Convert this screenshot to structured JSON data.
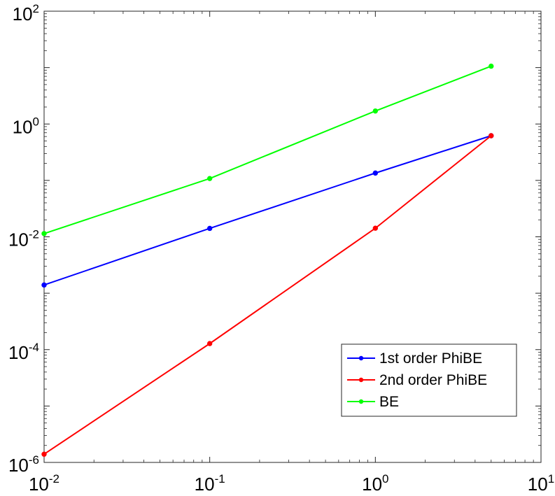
{
  "chart_data": {
    "type": "line",
    "x_scale": "log",
    "y_scale": "log",
    "xlim": [
      0.01,
      10
    ],
    "ylim": [
      1e-06,
      100
    ],
    "grid": false,
    "legend_placement": "bottom-right",
    "x_ticks": [
      {
        "base": "10",
        "exp": "-2",
        "value": 0.01
      },
      {
        "base": "10",
        "exp": "-1",
        "value": 0.1
      },
      {
        "base": "10",
        "exp": "0",
        "value": 1
      },
      {
        "base": "10",
        "exp": "1",
        "value": 10
      }
    ],
    "y_ticks": [
      {
        "base": "10",
        "exp": "2",
        "value": 100
      },
      {
        "base": "10",
        "exp": "0",
        "value": 1
      },
      {
        "base": "10",
        "exp": "-2",
        "value": 0.01
      },
      {
        "base": "10",
        "exp": "-4",
        "value": 0.0001
      },
      {
        "base": "10",
        "exp": "-6",
        "value": 1e-06
      }
    ],
    "x": [
      0.01,
      0.1,
      1,
      5
    ],
    "series": [
      {
        "name": "1st order PhiBE",
        "color": "#0000ff",
        "values": [
          0.0014,
          0.0141,
          0.135,
          0.62
        ]
      },
      {
        "name": "2nd order PhiBE",
        "color": "#ff0000",
        "values": [
          1.4e-06,
          0.000128,
          0.0142,
          0.62
        ]
      },
      {
        "name": "BE",
        "color": "#00ff00",
        "values": [
          0.0114,
          0.108,
          1.7,
          10.6
        ]
      }
    ]
  }
}
